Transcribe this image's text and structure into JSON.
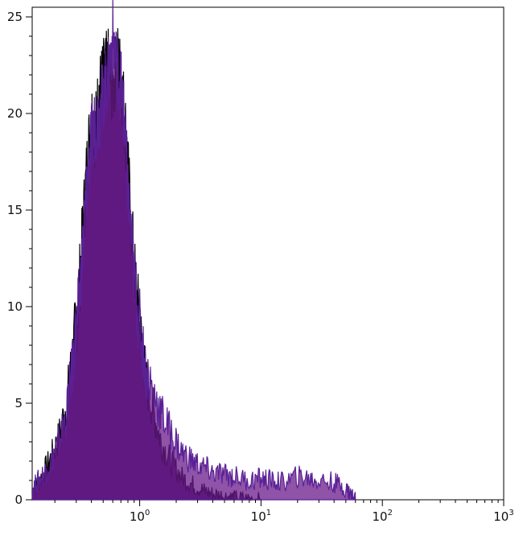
{
  "chart_data": {
    "type": "area",
    "title": "",
    "xlabel": "",
    "ylabel": "",
    "x_scale": "log",
    "xlim": [
      0.13,
      1000
    ],
    "ylim": [
      0,
      25.5
    ],
    "x_ticks": [
      {
        "value": 1,
        "base": "10",
        "exp": "0"
      },
      {
        "value": 10,
        "base": "10",
        "exp": "1"
      },
      {
        "value": 100,
        "base": "10",
        "exp": "2"
      },
      {
        "value": 1000,
        "base": "10",
        "exp": "3"
      }
    ],
    "y_ticks": [
      {
        "value": 0,
        "label": "0"
      },
      {
        "value": 5,
        "label": "5"
      },
      {
        "value": 10,
        "label": "10"
      },
      {
        "value": 15,
        "label": "15"
      },
      {
        "value": 20,
        "label": "20"
      },
      {
        "value": 25,
        "label": "25"
      }
    ],
    "grid": false,
    "legend": "none",
    "series": [
      {
        "color": "#000000",
        "fill": "#4a1a6e",
        "x": [
          0.13,
          0.15,
          0.18,
          0.21,
          0.25,
          0.28,
          0.31,
          0.34,
          0.37,
          0.4,
          0.43,
          0.46,
          0.5,
          0.55,
          0.6,
          0.65,
          0.7,
          0.75,
          0.8,
          0.9,
          1.0,
          1.1,
          1.3,
          1.5,
          1.8,
          2.2,
          2.7,
          3.3,
          4.0,
          5.0,
          6.0,
          8.0,
          10.0
        ],
        "values": [
          0.5,
          1.0,
          2.0,
          3.0,
          5.0,
          7.5,
          10.0,
          14.0,
          17.5,
          20.0,
          19.0,
          21.0,
          22.0,
          22.5,
          21.0,
          23.0,
          22.0,
          20.0,
          17.0,
          12.0,
          9.0,
          6.5,
          4.5,
          3.0,
          2.0,
          1.2,
          0.8,
          0.5,
          0.3,
          0.2,
          0.1,
          0.05,
          0.0
        ]
      },
      {
        "color": "#5a2196",
        "fill": "#6a1a8a",
        "x": [
          0.13,
          0.15,
          0.18,
          0.21,
          0.25,
          0.28,
          0.31,
          0.34,
          0.37,
          0.4,
          0.43,
          0.46,
          0.5,
          0.55,
          0.6,
          0.65,
          0.7,
          0.75,
          0.8,
          0.9,
          1.0,
          1.1,
          1.3,
          1.5,
          1.8,
          2.2,
          2.7,
          3.3,
          4.0,
          5.0,
          6.0,
          8.0,
          10.0,
          12.0,
          15.0,
          20.0,
          25.0,
          30.0,
          40.0,
          50.0,
          55.0,
          60.0
        ],
        "values": [
          0.6,
          1.1,
          1.8,
          2.8,
          4.5,
          7.0,
          9.5,
          13.0,
          16.5,
          18.5,
          19.5,
          20.0,
          21.0,
          22.0,
          24.0,
          22.5,
          21.5,
          19.5,
          16.0,
          11.5,
          9.0,
          7.0,
          5.5,
          4.5,
          3.5,
          2.5,
          2.0,
          1.7,
          1.4,
          1.3,
          1.2,
          1.0,
          1.1,
          1.0,
          0.9,
          1.2,
          1.1,
          1.0,
          0.9,
          0.6,
          0.3,
          0.0
        ]
      }
    ]
  }
}
